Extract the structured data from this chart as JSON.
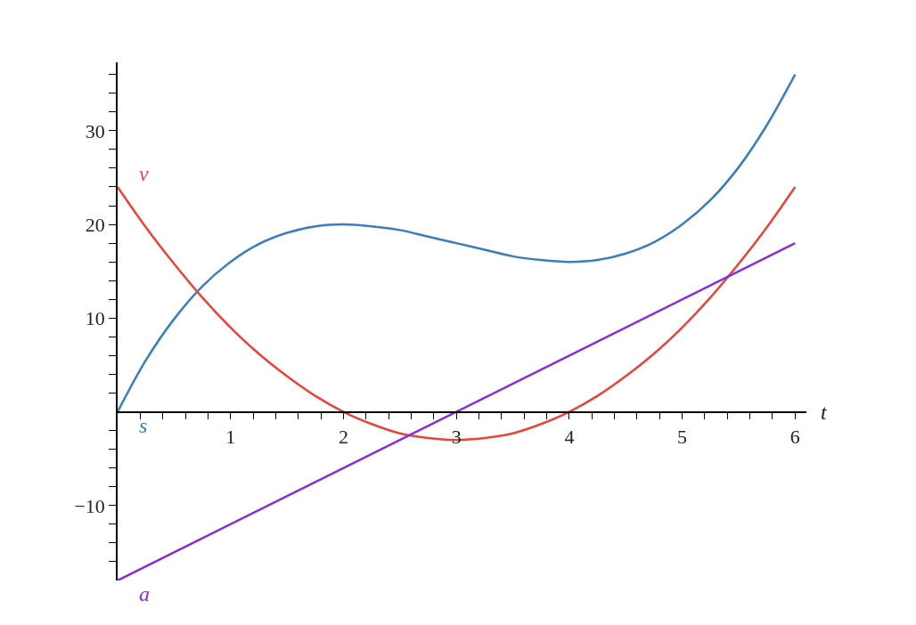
{
  "chart_data": {
    "type": "line",
    "xlabel": "t",
    "x": [
      0,
      0.25,
      0.5,
      0.75,
      1,
      1.25,
      1.5,
      1.75,
      2,
      2.25,
      2.5,
      2.75,
      3,
      3.25,
      3.5,
      3.75,
      4,
      4.25,
      4.5,
      4.75,
      5,
      5.25,
      5.5,
      5.75,
      6
    ],
    "series": [
      {
        "name": "s",
        "color": "#3a7dc0",
        "values": [
          0,
          5.5,
          9.9,
          13.4,
          16,
          17.9,
          19.1,
          19.8,
          20,
          19.8,
          19.4,
          18.7,
          18,
          17.3,
          16.6,
          16.2,
          16,
          16.2,
          16.9,
          18.1,
          20,
          22.6,
          26.1,
          30.6,
          36
        ]
      },
      {
        "name": "v",
        "color": "#e8443a",
        "values": [
          24,
          19.7,
          15.8,
          12.2,
          9,
          6.2,
          3.8,
          1.7,
          0,
          -1.3,
          -2.3,
          -2.8,
          -3,
          -2.8,
          -2.3,
          -1.3,
          0,
          1.7,
          3.8,
          6.2,
          9,
          12.2,
          15.8,
          19.7,
          24
        ]
      },
      {
        "name": "a",
        "color": "#8a2be2",
        "x": [
          0,
          6
        ],
        "values": [
          -18,
          18
        ]
      }
    ],
    "xlim": [
      0,
      6.1
    ],
    "ylim": [
      -18,
      37.3
    ],
    "xticks": [
      1,
      2,
      3,
      4,
      5,
      6,
      {
        "value": 0.2,
        "label": null
      },
      {
        "value": 0.4,
        "label": null
      },
      {
        "value": 0.6,
        "label": null
      },
      {
        "value": 0.8,
        "label": null
      },
      {
        "value": 1.2,
        "label": null
      },
      {
        "value": 1.4,
        "label": null
      },
      {
        "value": 1.6,
        "label": null
      },
      {
        "value": 1.8,
        "label": null
      },
      {
        "value": 2.2,
        "label": null
      },
      {
        "value": 2.4,
        "label": null
      },
      {
        "value": 2.6,
        "label": null
      },
      {
        "value": 2.8,
        "label": null
      },
      {
        "value": 3.2,
        "label": null
      },
      {
        "value": 3.4,
        "label": null
      },
      {
        "value": 3.6,
        "label": null
      },
      {
        "value": 3.8,
        "label": null
      },
      {
        "value": 4.2,
        "label": null
      },
      {
        "value": 4.4,
        "label": null
      },
      {
        "value": 4.6,
        "label": null
      },
      {
        "value": 4.8,
        "label": null
      },
      {
        "value": 5.2,
        "label": null
      },
      {
        "value": 5.4,
        "label": null
      },
      {
        "value": 5.6,
        "label": null
      },
      {
        "value": 5.8,
        "label": null
      }
    ],
    "yticks": [
      {
        "value": -10,
        "label": "−10"
      },
      10,
      20,
      30,
      {
        "value": -16,
        "label": null
      },
      {
        "value": -14,
        "label": null
      },
      {
        "value": -12,
        "label": null
      },
      {
        "value": -8,
        "label": null
      },
      {
        "value": -6,
        "label": null
      },
      {
        "value": -4,
        "label": null
      },
      {
        "value": -2,
        "label": null
      },
      {
        "value": 2,
        "label": null
      },
      {
        "value": 4,
        "label": null
      },
      {
        "value": 6,
        "label": null
      },
      {
        "value": 8,
        "label": null
      },
      {
        "value": 12,
        "label": null
      },
      {
        "value": 14,
        "label": null
      },
      {
        "value": 16,
        "label": null
      },
      {
        "value": 18,
        "label": null
      },
      {
        "value": 22,
        "label": null
      },
      {
        "value": 24,
        "label": null
      },
      {
        "value": 26,
        "label": null
      },
      {
        "value": 28,
        "label": null
      },
      {
        "value": 32,
        "label": null
      },
      {
        "value": 34,
        "label": null
      },
      {
        "value": 36,
        "label": null
      }
    ],
    "legend": false,
    "marker": "none",
    "line_style": "solid"
  }
}
